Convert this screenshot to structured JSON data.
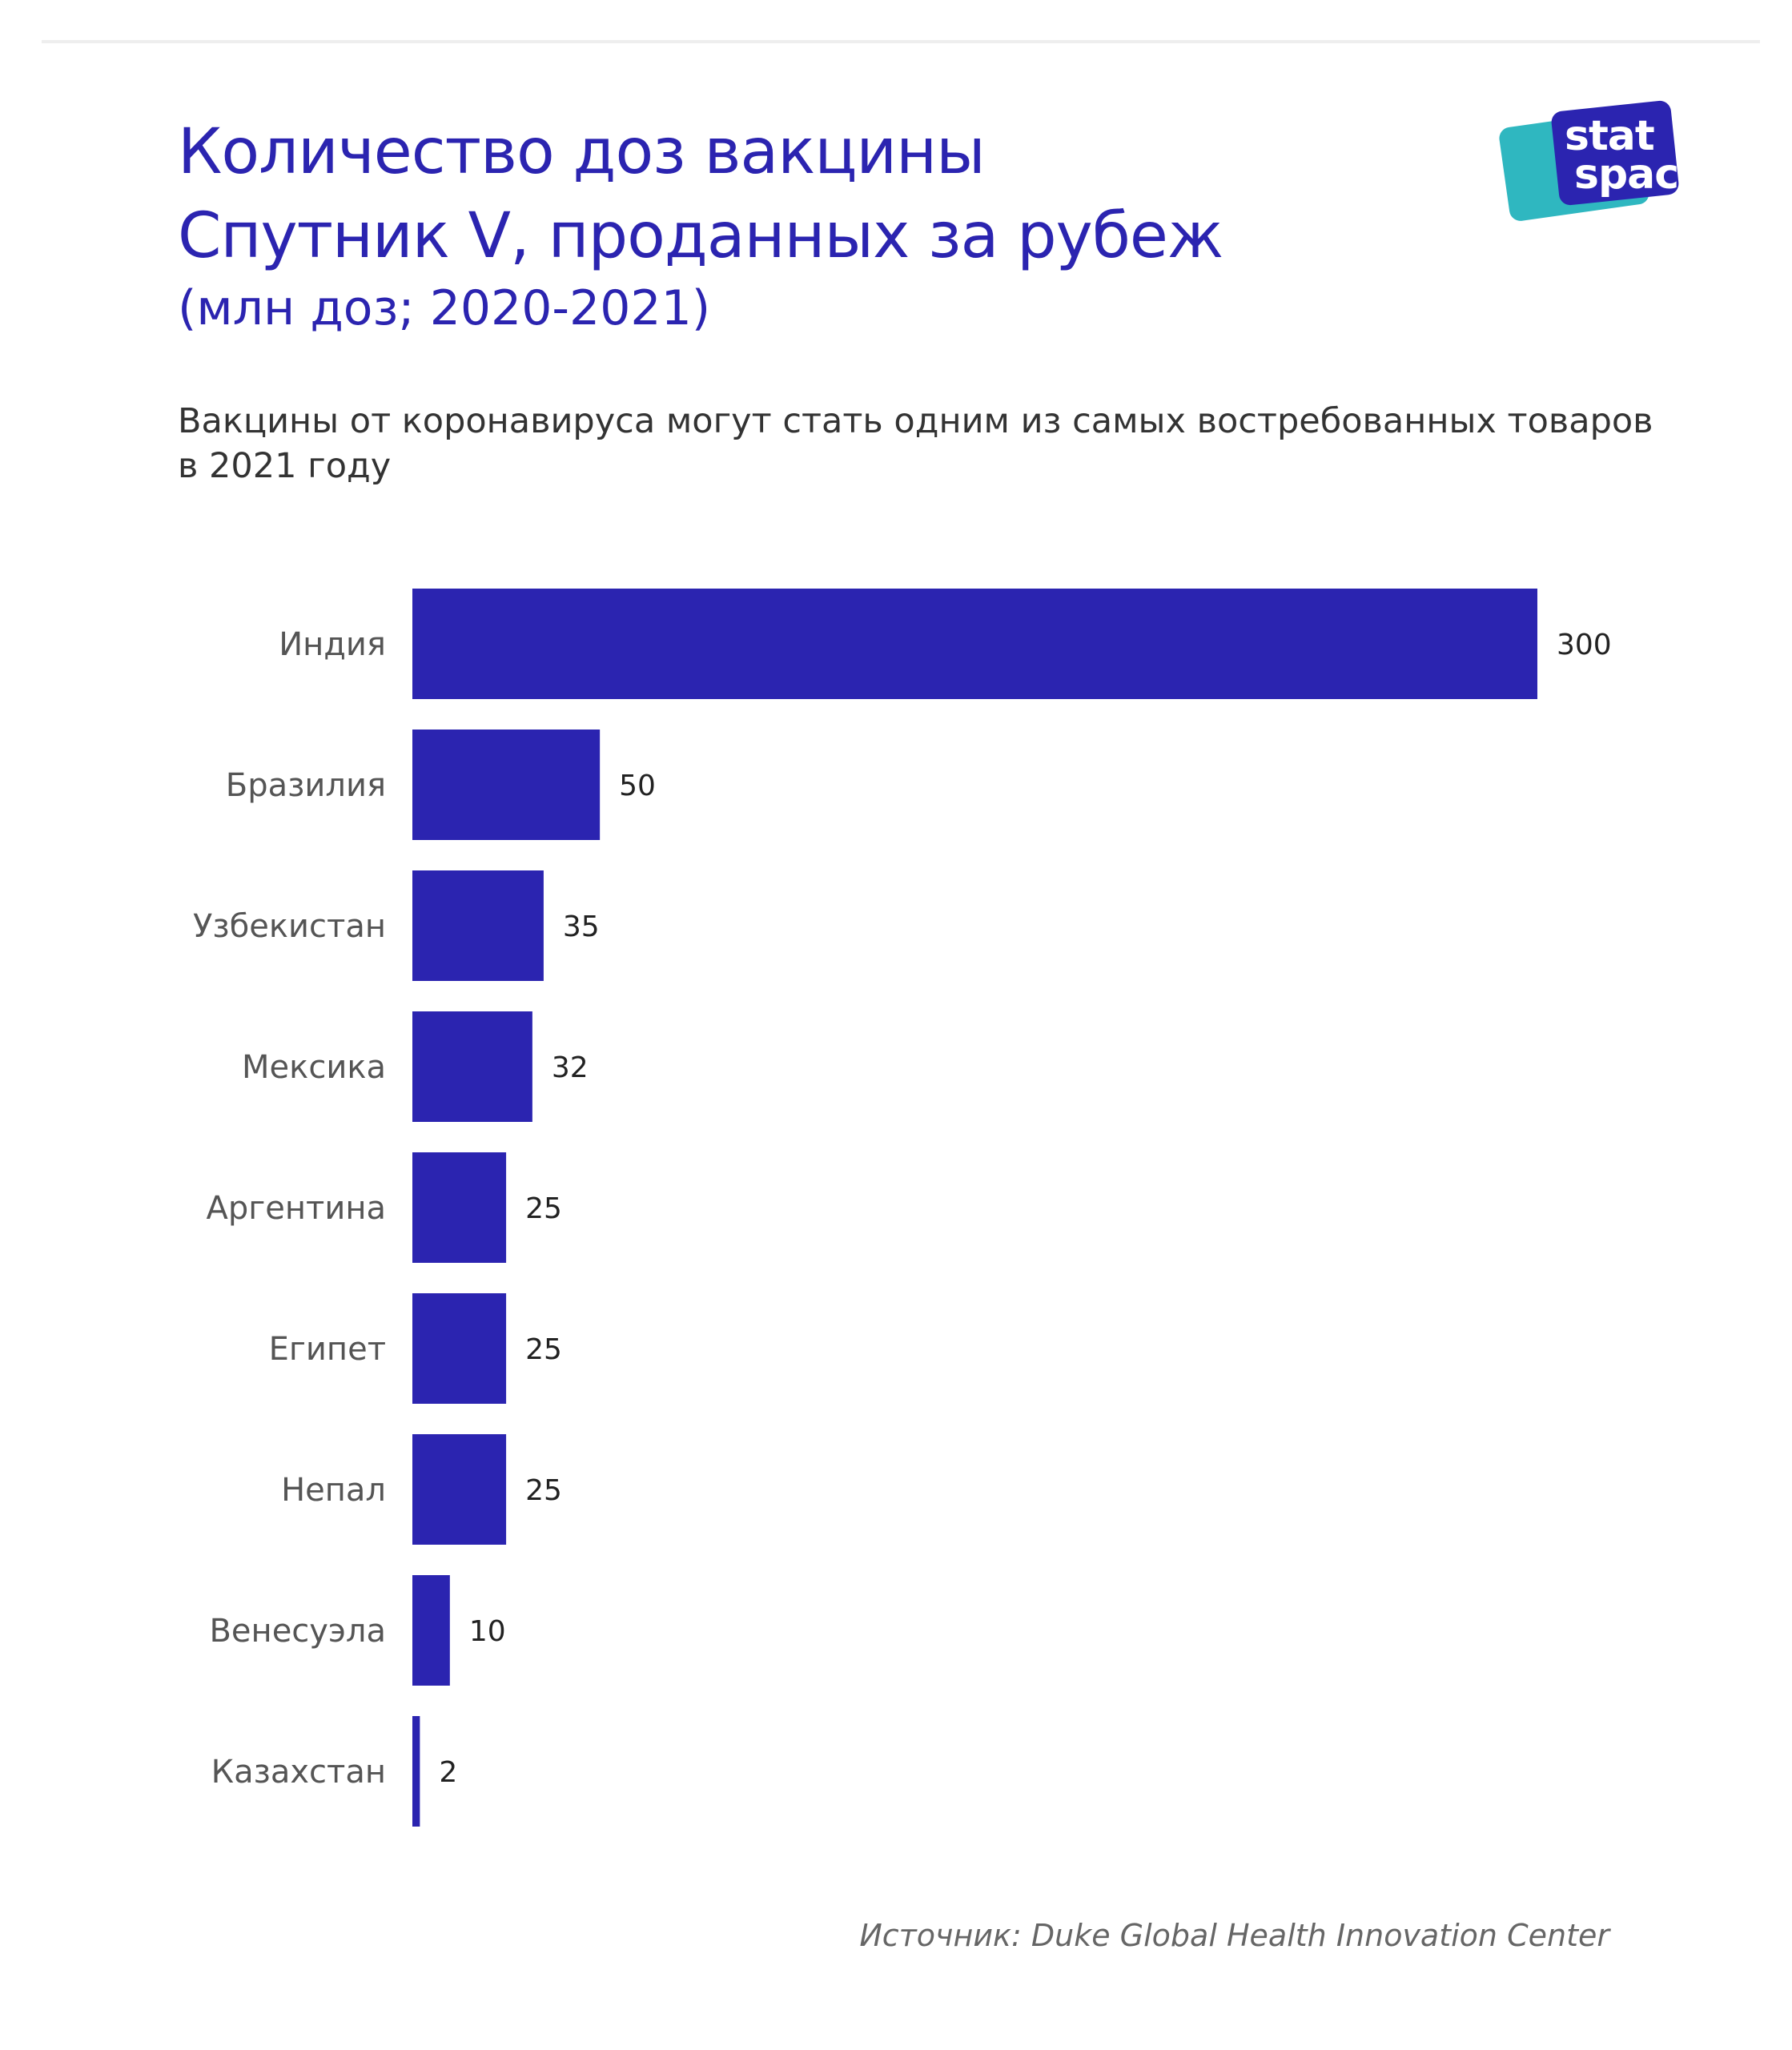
{
  "title_line1": "Количество доз вакцины",
  "title_line2": "Спутник V, проданных за рубеж",
  "subtitle": "(млн доз; 2020-2021)",
  "lead": "Вакцины от коронавируса могут стать одним из самых востребованных товаров в 2021 году",
  "logo": {
    "line1": "stat",
    "line2": "space"
  },
  "source": "Источник: Duke Global Health Innovation Center",
  "colors": {
    "bar": "#2b24b0",
    "title": "#2b24b0",
    "logo_teal": "#2fb7c0"
  },
  "chart_data": {
    "type": "bar",
    "orientation": "horizontal",
    "categories": [
      "Индия",
      "Бразилия",
      "Узбекистан",
      "Мексика",
      "Аргентина",
      "Египет",
      "Непал",
      "Венесуэла",
      "Казахстан"
    ],
    "values": [
      300,
      50,
      35,
      32,
      25,
      25,
      25,
      10,
      2
    ],
    "title": "Количество доз вакцины Спутник V, проданных за рубеж",
    "subtitle": "(млн доз; 2020-2021)",
    "xlabel": "",
    "ylabel": "",
    "xlim": [
      0,
      300
    ],
    "grid": false,
    "legend": "none",
    "data_labels": true
  }
}
